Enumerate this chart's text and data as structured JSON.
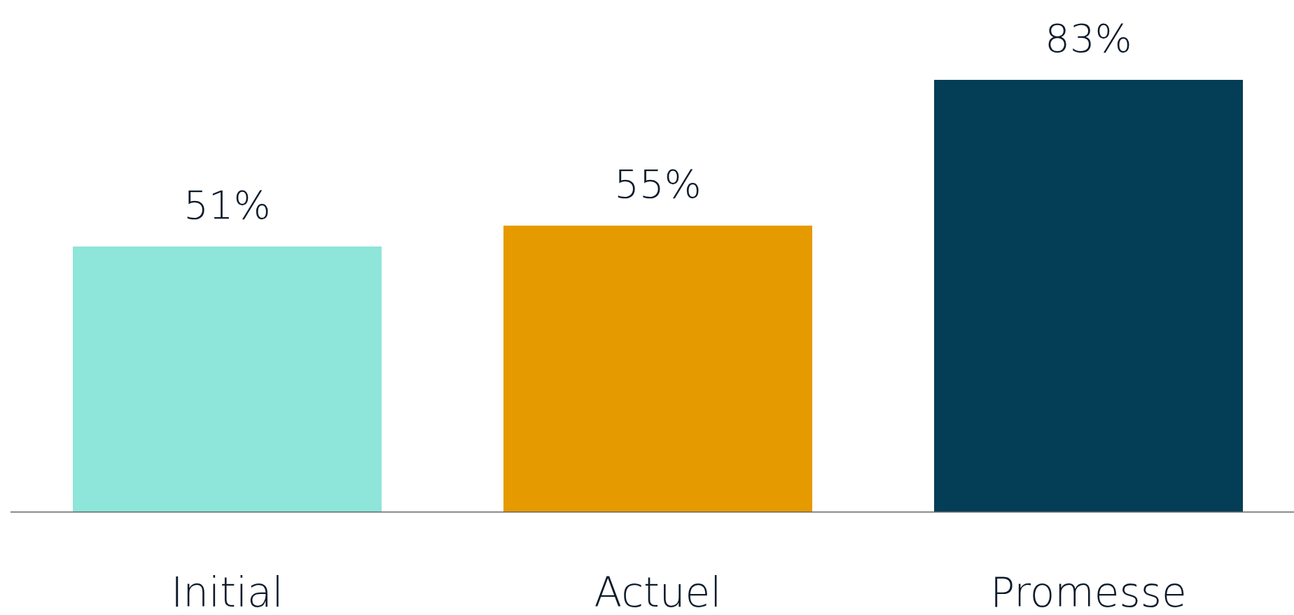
{
  "chart_data": {
    "type": "bar",
    "categories": [
      "Initial",
      "Actuel",
      "Promesse"
    ],
    "values": [
      51,
      55,
      83
    ],
    "colors": [
      "#8ee5d9",
      "#e59a00",
      "#043d56"
    ],
    "value_labels": [
      "51%",
      "55%",
      "83%"
    ]
  }
}
